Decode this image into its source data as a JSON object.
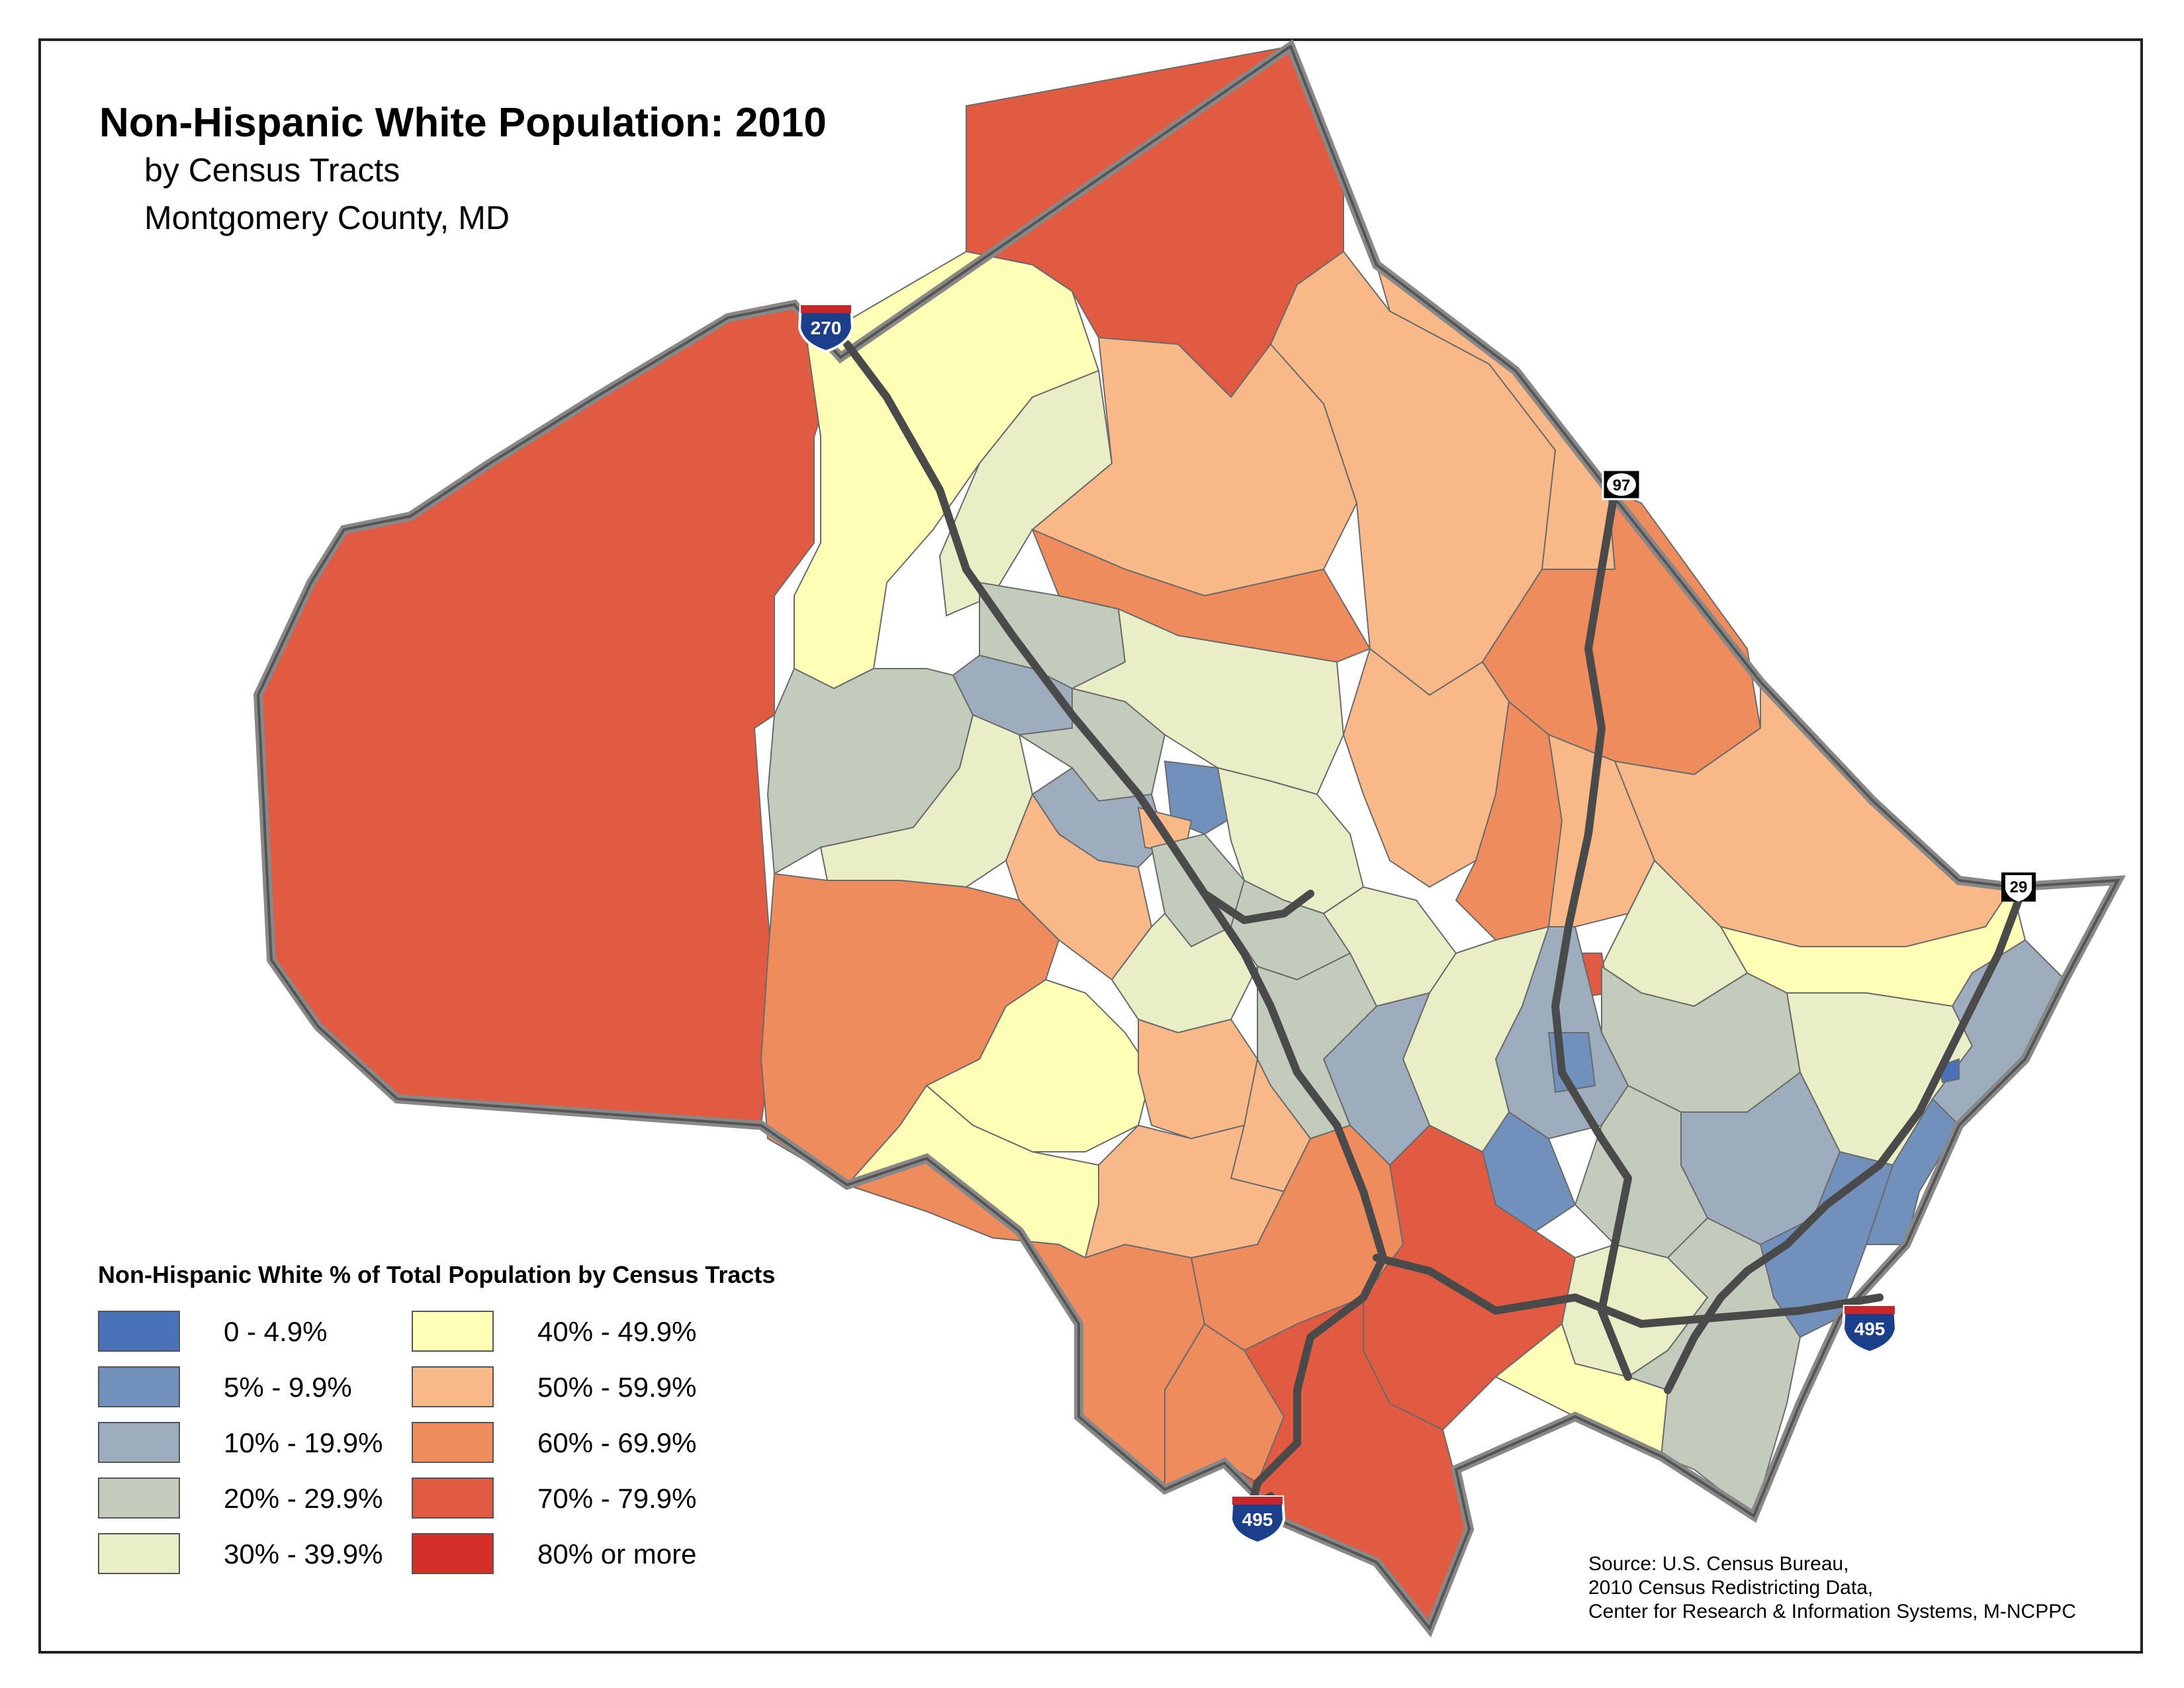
{
  "title": "Non-Hispanic White Population: 2010",
  "subtitle_line1": "by Census Tracts",
  "subtitle_line2": "Montgomery County, MD",
  "legend": {
    "title": "Non-Hispanic White % of Total Population by Census Tracts",
    "classes": [
      {
        "label": "0 - 4.9%",
        "color": "#4a72b8"
      },
      {
        "label": "5% - 9.9%",
        "color": "#7290bc"
      },
      {
        "label": "10% - 19.9%",
        "color": "#9dadbd"
      },
      {
        "label": "20% - 29.9%",
        "color": "#c3ccbc"
      },
      {
        "label": "30% - 39.9%",
        "color": "#e9eec6"
      },
      {
        "label": "40% - 49.9%",
        "color": "#fefeb6"
      },
      {
        "label": "50% - 59.9%",
        "color": "#f8b887"
      },
      {
        "label": "60% - 69.9%",
        "color": "#ee8c5e"
      },
      {
        "label": "70% - 79.9%",
        "color": "#e05b42"
      },
      {
        "label": "80% or more",
        "color": "#d42e29"
      }
    ]
  },
  "highway_shields": [
    {
      "label": "270",
      "type": "interstate"
    },
    {
      "label": "97",
      "type": "state"
    },
    {
      "label": "29",
      "type": "us"
    },
    {
      "label": "495",
      "type": "interstate"
    },
    {
      "label": "495",
      "type": "interstate"
    }
  ],
  "source_lines": [
    "Source: U.S. Census Bureau,",
    "2010 Census Redistricting Data,",
    "Center for Research & Information Systems, M-NCPPC"
  ]
}
